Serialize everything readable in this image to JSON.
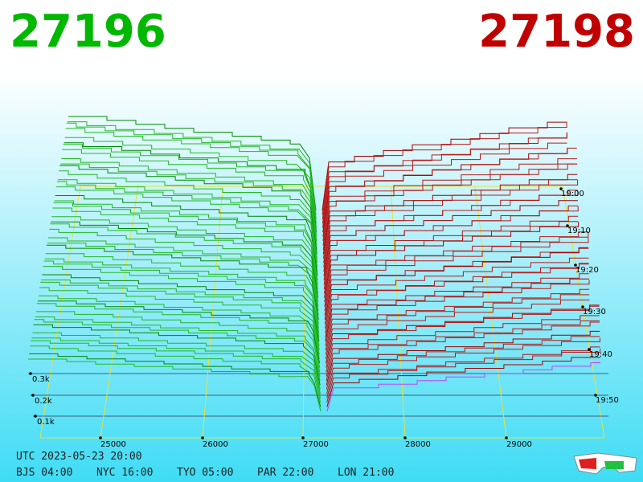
{
  "header": {
    "bid": "27196",
    "ask": "27198"
  },
  "axis": {
    "price_labels": [
      "25000",
      "26000",
      "27000",
      "28000",
      "29000"
    ],
    "depth_labels": [
      "0.3k",
      "0.2k",
      "0.1k"
    ],
    "time_labels": [
      "19:00",
      "19:10",
      "19:20",
      "19:30",
      "19:40",
      "19:50"
    ]
  },
  "footer": {
    "utc": "UTC 2023-05-23 20:00",
    "zones": [
      "BJS 04:00",
      "NYC 16:00",
      "TYO 05:00",
      "PAR 22:00",
      "LON 21:00"
    ]
  }
}
